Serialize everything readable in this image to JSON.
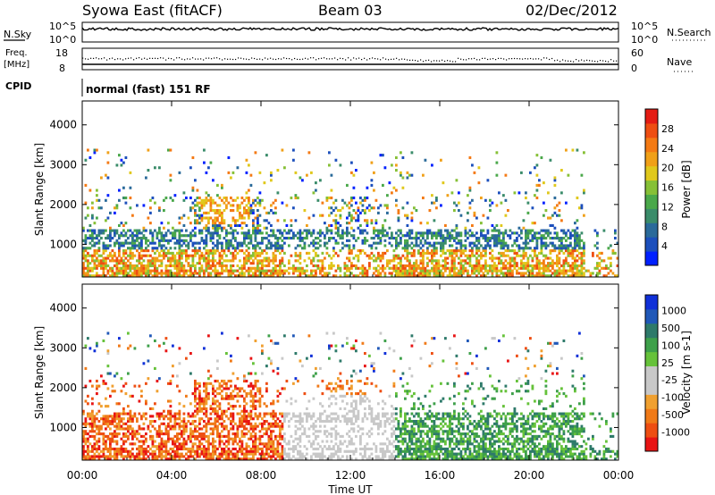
{
  "header": {
    "station": "Syowa East (fitACF)",
    "beam": "Beam 03",
    "date": "02/Dec/2012"
  },
  "top_panels": {
    "nsky": {
      "label": "N.Sky",
      "tick_top": "10^5",
      "tick_bottom": "10^0"
    },
    "nsearch": {
      "label": "N.Search",
      "tick_top": "10^5",
      "tick_bottom": "10^0"
    },
    "freq": {
      "label_line1": "Freq.",
      "label_line2": "[MHz]",
      "tick_top": "18",
      "tick_bottom": "8"
    },
    "nave": {
      "label": "Nave",
      "tick_top": "60",
      "tick_bottom": "0"
    },
    "cpid": {
      "label": "CPID",
      "mode_text": "normal (fast) 151 RF"
    }
  },
  "chart_data": [
    {
      "type": "heatmap",
      "name": "power",
      "x_ticks": [
        "00:00",
        "04:00",
        "08:00",
        "12:00",
        "16:00",
        "20:00",
        "00:00"
      ],
      "x_range_hours": [
        0,
        24
      ],
      "ylabel": "Slant Range [km]",
      "y_ticks": [
        1000,
        2000,
        3000,
        4000
      ],
      "ylim": [
        180,
        4600
      ],
      "colorbar": {
        "label": "Power [dB]",
        "ticks": [
          4,
          8,
          12,
          16,
          20,
          24,
          28
        ],
        "range": [
          0,
          32
        ],
        "colors": [
          "#0020ff",
          "#1c4fbc",
          "#2a6a9a",
          "#3a8c6a",
          "#4aa84a",
          "#86c036",
          "#e0c81c",
          "#f0a018",
          "#f47a14",
          "#ee4e12",
          "#e41c14"
        ]
      }
    },
    {
      "type": "heatmap",
      "name": "velocity",
      "x_ticks": [
        "00:00",
        "04:00",
        "08:00",
        "12:00",
        "16:00",
        "20:00",
        "00:00"
      ],
      "x_range_hours": [
        0,
        24
      ],
      "xlabel": "Time UT",
      "ylabel": "Slant Range [km]",
      "y_ticks": [
        1000,
        2000,
        3000,
        4000
      ],
      "ylim": [
        180,
        4600
      ],
      "colorbar": {
        "label": "Velocity [m s-1]",
        "ticks": [
          "1000",
          "500",
          "100",
          "25",
          "-25",
          "-100",
          "-500",
          "-1000"
        ],
        "colors": [
          "#1030d8",
          "#2058b8",
          "#2e7a6a",
          "#3ea04a",
          "#66c23a",
          "#c8c8c8",
          "#c8c8c8",
          "#f0a030",
          "#f07a18",
          "#ee4e12",
          "#e81414"
        ]
      }
    }
  ]
}
